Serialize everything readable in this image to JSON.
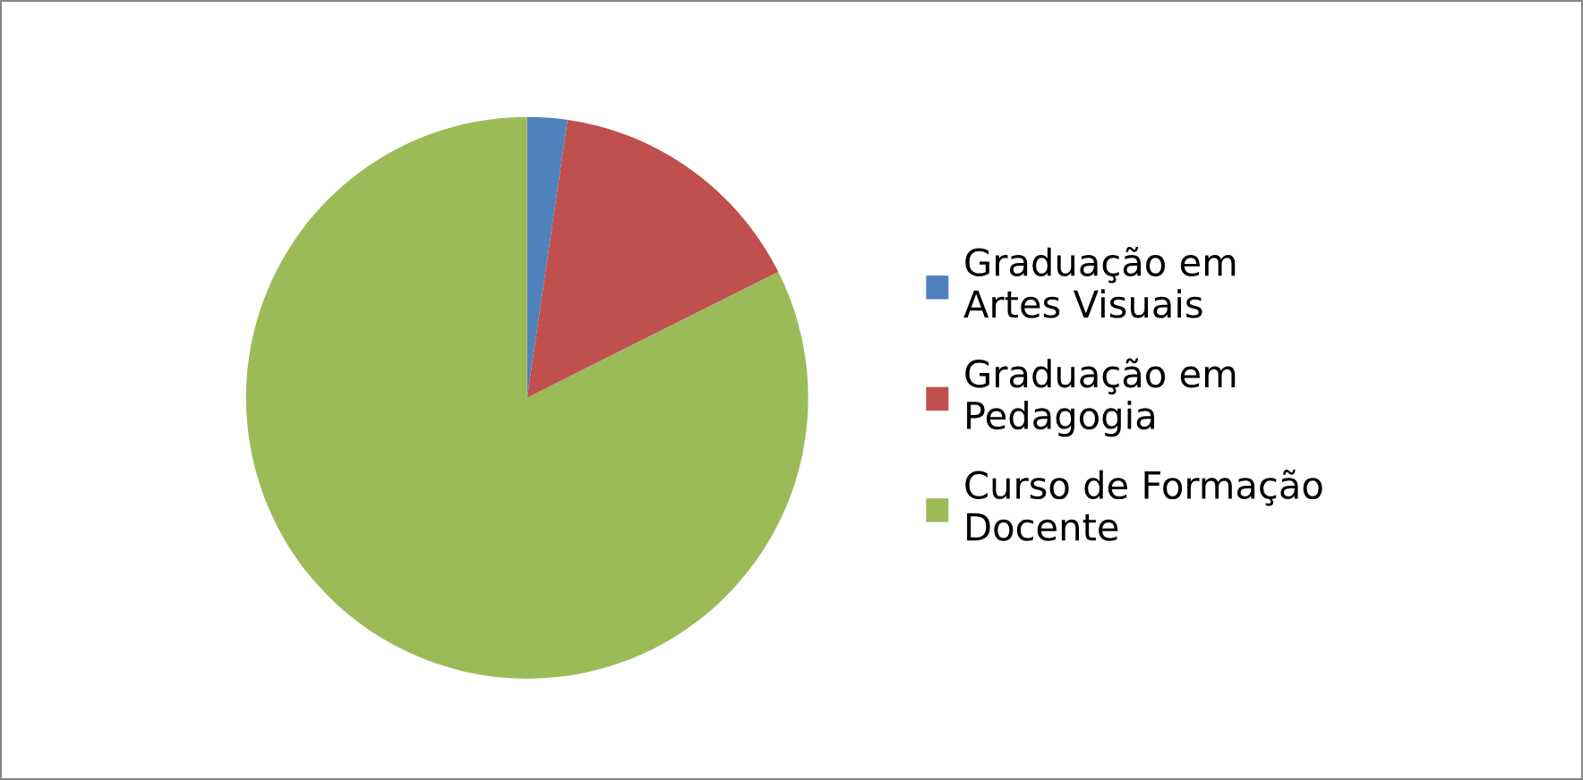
{
  "chart_data": {
    "type": "pie",
    "categories": [
      "Graduação em\nArtes Visuais",
      "Graduação em\nPedagogia",
      "Curso de Formação\nDocente"
    ],
    "values": [
      2.3,
      15.3,
      82.4
    ],
    "colors": [
      "#4f81bd",
      "#c0504d",
      "#9bbb59"
    ],
    "legend": "right"
  }
}
